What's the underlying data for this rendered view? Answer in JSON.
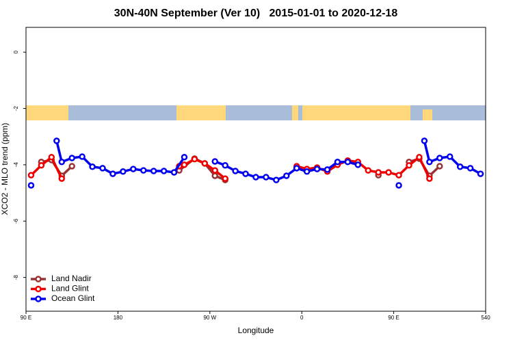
{
  "chart_data": {
    "type": "line",
    "title": "30N-40N September (Ver 10)   2015-01-01 to 2020-12-18",
    "x_label": "Longitude",
    "y_label": "XCO2 - MLO trend (ppm)",
    "xlim": [
      90,
      540
    ],
    "xticks": [
      {
        "value": 90,
        "label": "90 E"
      },
      180,
      {
        "value": 270,
        "label": "90 W"
      },
      {
        "value": 360,
        "label": "0"
      },
      {
        "value": 450,
        "label": "90 E"
      },
      540
    ],
    "ylim": [
      -9.2,
      0.88
    ],
    "yticks": [
      0,
      -2,
      -4,
      -6,
      -8
    ],
    "legend": "bottom-left",
    "series": [
      {
        "name": "Land Nadir",
        "color": "#993333",
        "x": [
          105,
          115,
          125,
          135,
          180,
          240,
          255,
          265,
          275,
          285,
          320,
          355,
          400,
          435,
          450,
          465,
          475,
          485,
          495
        ],
        "values": [
          -3.9,
          -3.83,
          -4.39,
          -4.05,
          null,
          -4.2,
          -3.78,
          -3.95,
          -4.39,
          -4.54,
          null,
          -4.1,
          null,
          -4.37,
          null,
          -3.9,
          -3.78,
          -4.39,
          -4.05
        ]
      },
      {
        "name": "Land Glint",
        "color": "#ee0000",
        "x": [
          95,
          105,
          115,
          125,
          180,
          240,
          245,
          255,
          265,
          275,
          285,
          320,
          355,
          365,
          375,
          385,
          395,
          405,
          415,
          425,
          435,
          445,
          455,
          465,
          475,
          485
        ],
        "values": [
          -4.37,
          -4.02,
          -3.73,
          -4.49,
          null,
          -4.05,
          -4.0,
          -3.8,
          -3.95,
          -4.2,
          -4.49,
          null,
          -4.05,
          -4.15,
          -4.1,
          -4.24,
          -4.0,
          -3.85,
          -3.9,
          -4.2,
          -4.27,
          -4.27,
          -4.37,
          -4.02,
          -3.73,
          -4.49
        ]
      },
      {
        "name": "Ocean Glint",
        "color": "#0000ee",
        "x": [
          95,
          110,
          120,
          125,
          135,
          145,
          155,
          165,
          175,
          185,
          195,
          205,
          215,
          225,
          235,
          245,
          260,
          275,
          285,
          295,
          305,
          315,
          325,
          335,
          345,
          355,
          365,
          375,
          385,
          395,
          405,
          415,
          435,
          455,
          470,
          480,
          485,
          495,
          505,
          515,
          525,
          535
        ],
        "values": [
          -4.73,
          null,
          -3.15,
          -3.9,
          -3.76,
          -3.71,
          -4.07,
          -4.12,
          -4.32,
          -4.24,
          -4.15,
          -4.2,
          -4.22,
          -4.22,
          -4.27,
          -3.73,
          null,
          -3.88,
          -4.02,
          -4.22,
          -4.32,
          -4.44,
          -4.44,
          -4.54,
          -4.39,
          -4.12,
          -4.24,
          -4.15,
          -4.17,
          -3.9,
          -3.9,
          -4.0,
          null,
          -4.73,
          null,
          -3.15,
          -3.9,
          -3.76,
          -3.71,
          -4.07,
          -4.12,
          -4.32
        ]
      }
    ]
  }
}
